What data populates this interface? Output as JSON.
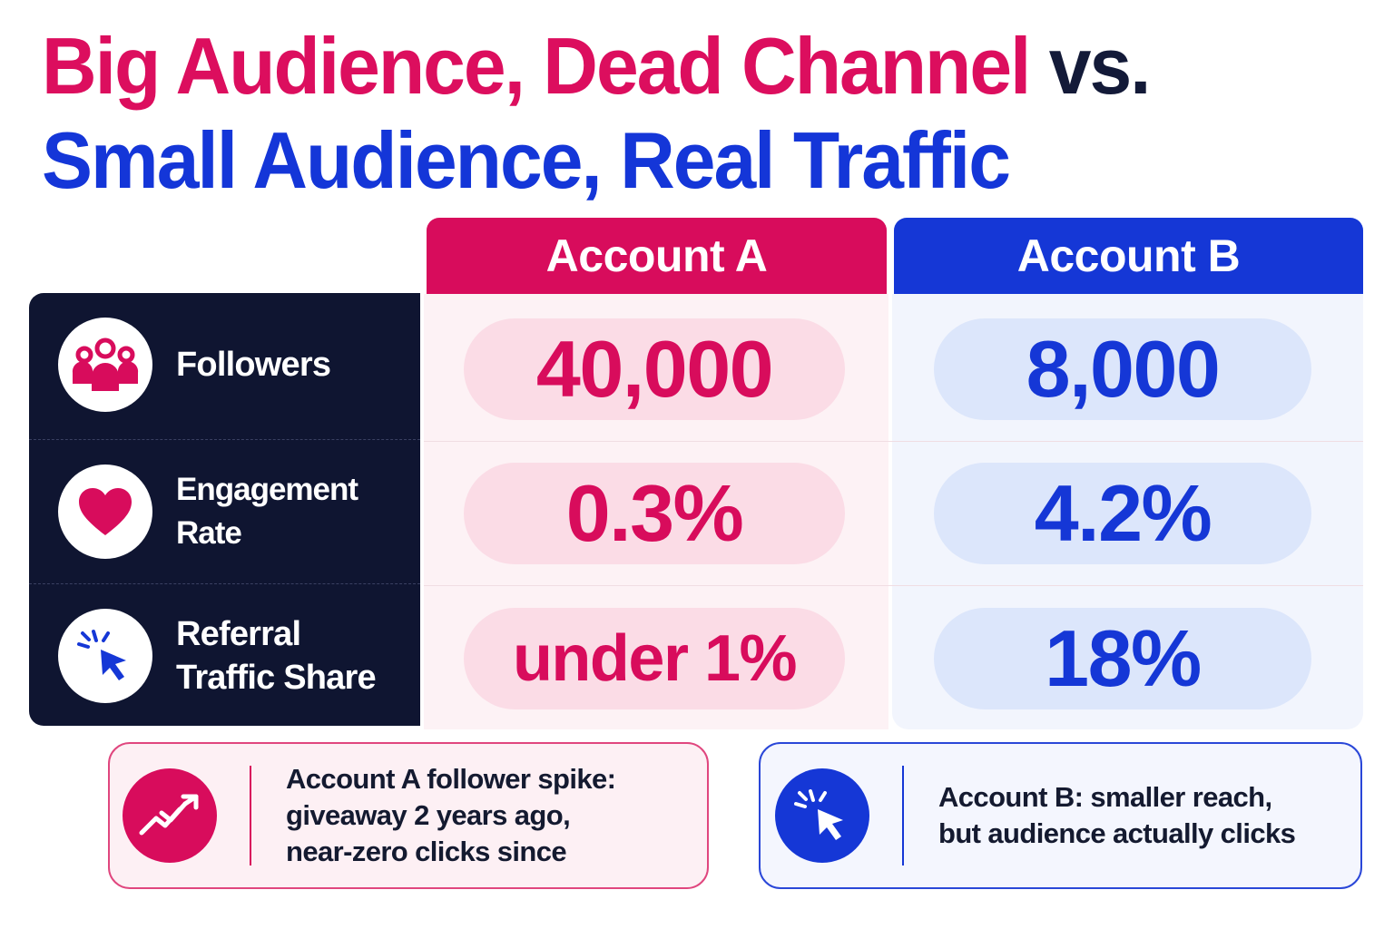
{
  "title": {
    "line1_pink": "Big Audience, Dead Channel",
    "line1_dark": "vs.",
    "line2_blue": "Small Audience, Real Traffic"
  },
  "columns": {
    "a": "Account A",
    "b": "Account B"
  },
  "rows": [
    {
      "label": "Followers",
      "icon": "users-icon",
      "a": "40,000",
      "b": "8,000"
    },
    {
      "label": "Engagement Rate",
      "icon": "heart-icon",
      "a": "0.3%",
      "b": "4.2%"
    },
    {
      "label_line1": "Referral",
      "label_line2": "Traffic Share",
      "icon": "cursor-click-icon",
      "a": "under 1%",
      "b": "18%"
    }
  ],
  "notes": {
    "a": {
      "icon": "trending-up-icon",
      "line1": "Account A follower spike:",
      "line2": "giveaway 2 years ago,",
      "line3": "near-zero clicks since"
    },
    "b": {
      "icon": "cursor-click-icon",
      "line1": "Account B: smaller reach,",
      "line2": "but audience actually clicks"
    }
  },
  "colors": {
    "pink": "#d80c5c",
    "blue": "#1537d6",
    "navy": "#0f1531"
  }
}
